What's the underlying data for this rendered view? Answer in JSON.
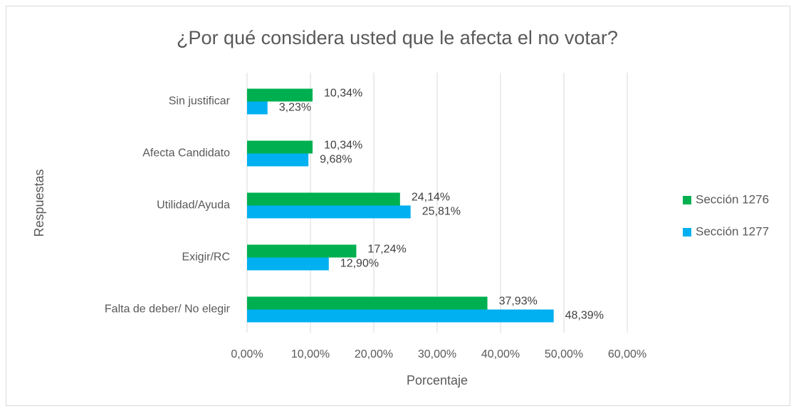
{
  "chart_data": {
    "type": "bar",
    "orientation": "horizontal",
    "title": "¿Por qué considera usted que le afecta el no votar?",
    "x_label": "Porcentaje",
    "y_label": "Respuestas",
    "categories": [
      "Sin justificar",
      "Afecta Candidato",
      "Utilidad/Ayuda",
      "Exigir/RC",
      "Falta de deber/ No elegir"
    ],
    "series": [
      {
        "name": "Sección 1276",
        "color": "#00b050",
        "values": [
          10.34,
          10.34,
          24.14,
          17.24,
          37.93
        ],
        "value_labels": [
          "10,34%",
          "10,34%",
          "24,14%",
          "17,24%",
          "37,93%"
        ]
      },
      {
        "name": "Sección 1277",
        "color": "#00b0f0",
        "values": [
          3.23,
          9.68,
          25.81,
          12.9,
          48.39
        ],
        "value_labels": [
          "3,23%",
          "9,68%",
          "25,81%",
          "12,90%",
          "48,39%"
        ]
      }
    ],
    "xlim": [
      0,
      60
    ],
    "xticks": [
      {
        "value": 0,
        "label": "0,00%"
      },
      {
        "value": 10,
        "label": "10,00%"
      },
      {
        "value": 20,
        "label": "20,00%"
      },
      {
        "value": 30,
        "label": "30,00%"
      },
      {
        "value": 40,
        "label": "40,00%"
      },
      {
        "value": 50,
        "label": "50,00%"
      },
      {
        "value": 60,
        "label": "60,00%"
      }
    ],
    "grid": true,
    "legend": "right"
  }
}
